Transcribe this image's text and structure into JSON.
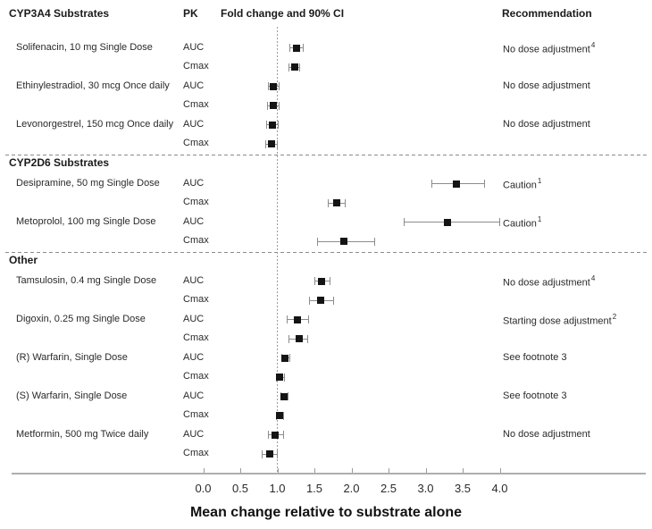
{
  "header": {
    "substrates": "CYP3A4 Substrates",
    "pk": "PK",
    "fold_change": "Fold change and 90% CI",
    "recommendation": "Recommendation"
  },
  "axis": {
    "min": 0,
    "max": 4,
    "ticks": [
      "0.0",
      "0.5",
      "1.0",
      "1.5",
      "2.0",
      "2.5",
      "3.0",
      "3.5",
      "4.0"
    ],
    "label": "Mean change relative to substrate alone",
    "reference_line": 1.0
  },
  "colors": {
    "text": "#1a1a1a",
    "marker": "#141414",
    "ci_line": "#8c8c8c",
    "divider": "#8c8c8c",
    "reference_line": "#9a9a9a",
    "axis_line": "#aeaeae",
    "background": "#ffffff"
  },
  "chart_data": {
    "type": "forest",
    "ci_level": "90% CI",
    "xlabel": "Mean change relative to substrate alone",
    "xlim": [
      0,
      4
    ],
    "reference_line": 1.0,
    "sections": [
      {
        "title": "",
        "drugs": [
          {
            "label": "Solifenacin, 10 mg Single Dose",
            "recommendation": "No dose adjustment",
            "rec_sup": "4",
            "rows": [
              {
                "pk": "AUC",
                "value": 1.26,
                "lo": 1.16,
                "hi": 1.35
              },
              {
                "pk": "Cmax",
                "value": 1.23,
                "lo": 1.15,
                "hi": 1.31
              }
            ]
          },
          {
            "label": "Ethinylestradiol, 30 mcg Once daily",
            "recommendation": "No dose adjustment",
            "rec_sup": "",
            "rows": [
              {
                "pk": "AUC",
                "value": 0.95,
                "lo": 0.87,
                "hi": 1.03
              },
              {
                "pk": "Cmax",
                "value": 0.94,
                "lo": 0.86,
                "hi": 1.03
              }
            ]
          },
          {
            "label": "Levonorgestrel, 150 mcg Once daily",
            "recommendation": "No dose adjustment",
            "rec_sup": "",
            "rows": [
              {
                "pk": "AUC",
                "value": 0.93,
                "lo": 0.85,
                "hi": 1.02
              },
              {
                "pk": "Cmax",
                "value": 0.92,
                "lo": 0.84,
                "hi": 1.01
              }
            ]
          }
        ]
      },
      {
        "title": "CYP2D6 Substrates",
        "drugs": [
          {
            "label": "Desipramine, 50 mg Single Dose",
            "recommendation": "Caution",
            "rec_sup": "1",
            "rows": [
              {
                "pk": "AUC",
                "value": 3.42,
                "lo": 3.08,
                "hi": 3.8
              },
              {
                "pk": "Cmax",
                "value": 1.8,
                "lo": 1.68,
                "hi": 1.92
              }
            ]
          },
          {
            "label": "Metoprolol, 100 mg Single Dose",
            "recommendation": "Caution",
            "rec_sup": "1",
            "rows": [
              {
                "pk": "AUC",
                "value": 3.3,
                "lo": 2.7,
                "hi": 4.0
              },
              {
                "pk": "Cmax",
                "value": 1.9,
                "lo": 1.54,
                "hi": 2.32
              }
            ]
          }
        ]
      },
      {
        "title": "Other",
        "drugs": [
          {
            "label": "Tamsulosin, 0.4 mg Single Dose",
            "recommendation": "No dose adjustment",
            "rec_sup": "4",
            "rows": [
              {
                "pk": "AUC",
                "value": 1.6,
                "lo": 1.5,
                "hi": 1.72
              },
              {
                "pk": "Cmax",
                "value": 1.58,
                "lo": 1.43,
                "hi": 1.77
              }
            ]
          },
          {
            "label": "Digoxin, 0.25 mg Single Dose",
            "recommendation": "Starting dose adjustment",
            "rec_sup": "2",
            "rows": [
              {
                "pk": "AUC",
                "value": 1.27,
                "lo": 1.13,
                "hi": 1.43
              },
              {
                "pk": "Cmax",
                "value": 1.29,
                "lo": 1.15,
                "hi": 1.42
              }
            ]
          },
          {
            "label": "(R) Warfarin, Single Dose",
            "recommendation": "See footnote 3",
            "rec_sup": "",
            "rows": [
              {
                "pk": "AUC",
                "value": 1.1,
                "lo": 1.05,
                "hi": 1.17
              },
              {
                "pk": "Cmax",
                "value": 1.03,
                "lo": 0.98,
                "hi": 1.1
              }
            ]
          },
          {
            "label": "(S) Warfarin, Single Dose",
            "recommendation": "See footnote 3",
            "rec_sup": "",
            "rows": [
              {
                "pk": "AUC",
                "value": 1.09,
                "lo": 1.04,
                "hi": 1.15
              },
              {
                "pk": "Cmax",
                "value": 1.03,
                "lo": 0.98,
                "hi": 1.09
              }
            ]
          },
          {
            "label": "Metformin, 500 mg Twice daily",
            "recommendation": "No dose adjustment",
            "rec_sup": "",
            "rows": [
              {
                "pk": "AUC",
                "value": 0.97,
                "lo": 0.87,
                "hi": 1.09
              },
              {
                "pk": "Cmax",
                "value": 0.9,
                "lo": 0.79,
                "hi": 1.01
              }
            ]
          }
        ]
      }
    ]
  }
}
